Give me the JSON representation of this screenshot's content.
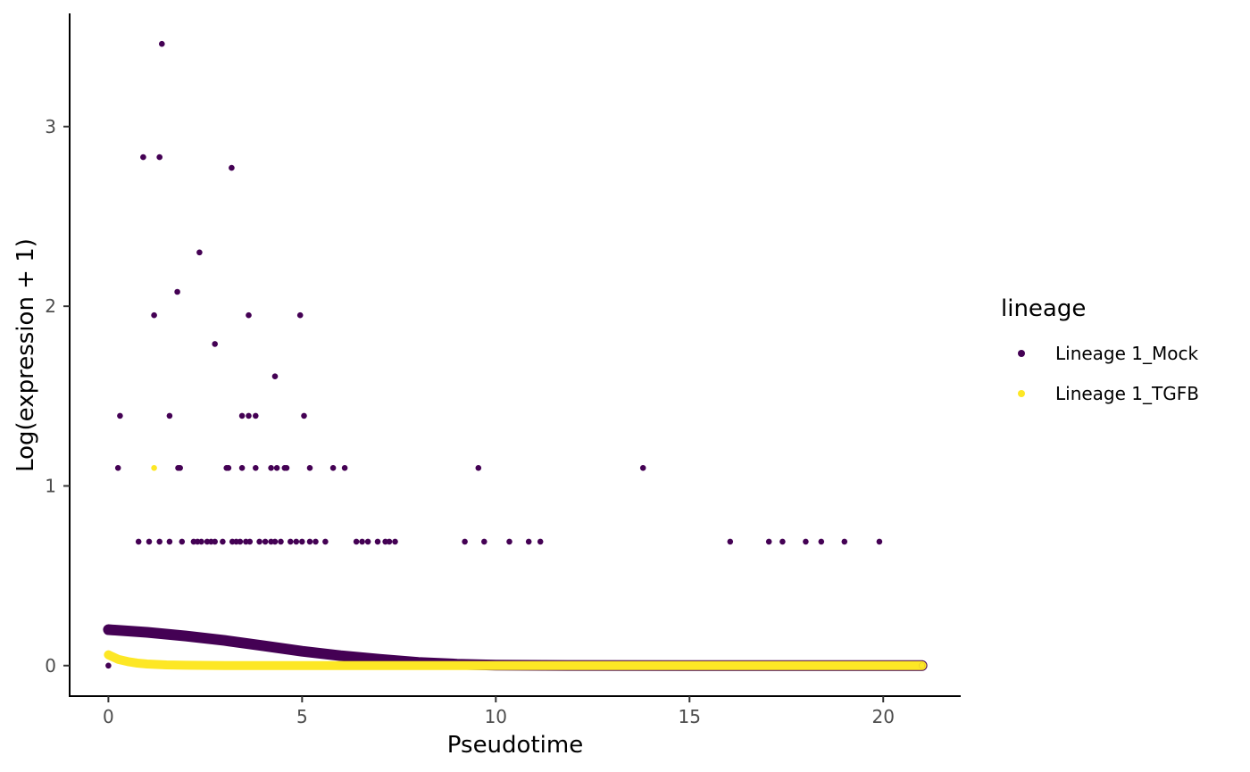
{
  "chart_data": {
    "type": "scatter",
    "xlabel": "Pseudotime",
    "ylabel": "Log(expression + 1)",
    "xlim": [
      -1.0,
      22.0
    ],
    "ylim": [
      -0.17,
      3.63
    ],
    "x_ticks": [
      0,
      5,
      10,
      15,
      20
    ],
    "y_ticks": [
      0,
      1,
      2,
      3
    ],
    "x_tick_labels": [
      "0",
      "5",
      "10",
      "15",
      "20"
    ],
    "y_tick_labels": [
      "0",
      "1",
      "2",
      "3"
    ],
    "grid": false,
    "legend": {
      "title": "lineage",
      "position": "right",
      "entries": [
        {
          "label": "Lineage 1_Mock",
          "color": "#440154"
        },
        {
          "label": "Lineage 1_TGFB",
          "color": "#FDE725"
        }
      ]
    },
    "series": [
      {
        "name": "Lineage 1_Mock",
        "color": "#440154",
        "points": [
          [
            1.38,
            3.46
          ],
          [
            0.9,
            2.83
          ],
          [
            1.32,
            2.83
          ],
          [
            3.18,
            2.77
          ],
          [
            2.35,
            2.3
          ],
          [
            1.78,
            2.08
          ],
          [
            1.18,
            1.95
          ],
          [
            3.62,
            1.95
          ],
          [
            4.95,
            1.95
          ],
          [
            2.75,
            1.79
          ],
          [
            4.3,
            1.61
          ],
          [
            0.3,
            1.39
          ],
          [
            1.58,
            1.39
          ],
          [
            3.45,
            1.39
          ],
          [
            3.62,
            1.39
          ],
          [
            3.8,
            1.39
          ],
          [
            5.05,
            1.39
          ],
          [
            0.25,
            1.1
          ],
          [
            1.8,
            1.1
          ],
          [
            1.85,
            1.1
          ],
          [
            3.05,
            1.1
          ],
          [
            3.1,
            1.1
          ],
          [
            3.45,
            1.1
          ],
          [
            3.8,
            1.1
          ],
          [
            4.2,
            1.1
          ],
          [
            4.35,
            1.1
          ],
          [
            4.55,
            1.1
          ],
          [
            4.6,
            1.1
          ],
          [
            5.2,
            1.1
          ],
          [
            5.8,
            1.1
          ],
          [
            6.1,
            1.1
          ],
          [
            9.55,
            1.1
          ],
          [
            13.8,
            1.1
          ],
          [
            0.78,
            0.69
          ],
          [
            1.05,
            0.69
          ],
          [
            1.32,
            0.69
          ],
          [
            1.58,
            0.69
          ],
          [
            1.9,
            0.69
          ],
          [
            2.2,
            0.69
          ],
          [
            2.3,
            0.69
          ],
          [
            2.4,
            0.69
          ],
          [
            2.55,
            0.69
          ],
          [
            2.65,
            0.69
          ],
          [
            2.75,
            0.69
          ],
          [
            2.95,
            0.69
          ],
          [
            3.2,
            0.69
          ],
          [
            3.3,
            0.69
          ],
          [
            3.4,
            0.69
          ],
          [
            3.55,
            0.69
          ],
          [
            3.65,
            0.69
          ],
          [
            3.9,
            0.69
          ],
          [
            4.05,
            0.69
          ],
          [
            4.2,
            0.69
          ],
          [
            4.3,
            0.69
          ],
          [
            4.45,
            0.69
          ],
          [
            4.7,
            0.69
          ],
          [
            4.85,
            0.69
          ],
          [
            5.0,
            0.69
          ],
          [
            5.2,
            0.69
          ],
          [
            5.35,
            0.69
          ],
          [
            5.6,
            0.69
          ],
          [
            6.4,
            0.69
          ],
          [
            6.55,
            0.69
          ],
          [
            6.7,
            0.69
          ],
          [
            6.95,
            0.69
          ],
          [
            7.15,
            0.69
          ],
          [
            7.25,
            0.69
          ],
          [
            7.4,
            0.69
          ],
          [
            9.2,
            0.69
          ],
          [
            9.7,
            0.69
          ],
          [
            10.35,
            0.69
          ],
          [
            10.85,
            0.69
          ],
          [
            11.15,
            0.69
          ],
          [
            16.05,
            0.69
          ],
          [
            17.05,
            0.69
          ],
          [
            17.4,
            0.69
          ],
          [
            18.0,
            0.69
          ],
          [
            18.4,
            0.69
          ],
          [
            19.0,
            0.69
          ],
          [
            19.9,
            0.69
          ],
          [
            0.0,
            0.0
          ],
          [
            21.0,
            0.0
          ]
        ],
        "fitted_curve": [
          [
            0.0,
            0.2
          ],
          [
            1.0,
            0.185
          ],
          [
            2.0,
            0.165
          ],
          [
            3.0,
            0.14
          ],
          [
            4.0,
            0.11
          ],
          [
            5.0,
            0.08
          ],
          [
            6.0,
            0.055
          ],
          [
            7.0,
            0.035
          ],
          [
            8.0,
            0.018
          ],
          [
            9.0,
            0.008
          ],
          [
            10.0,
            0.003
          ],
          [
            12.0,
            0.001
          ],
          [
            15.0,
            0.0
          ],
          [
            18.0,
            0.0
          ],
          [
            21.0,
            0.0
          ]
        ]
      },
      {
        "name": "Lineage 1_TGFB",
        "color": "#FDE725",
        "points": [
          [
            1.18,
            1.1
          ],
          [
            21.0,
            0.0
          ]
        ],
        "fitted_curve": [
          [
            0.0,
            0.06
          ],
          [
            0.25,
            0.035
          ],
          [
            0.5,
            0.022
          ],
          [
            0.75,
            0.014
          ],
          [
            1.0,
            0.009
          ],
          [
            1.5,
            0.004
          ],
          [
            2.0,
            0.002
          ],
          [
            3.0,
            0.0
          ],
          [
            5.0,
            0.0
          ],
          [
            10.0,
            0.0
          ],
          [
            15.0,
            0.0
          ],
          [
            21.0,
            0.0
          ]
        ]
      }
    ]
  }
}
